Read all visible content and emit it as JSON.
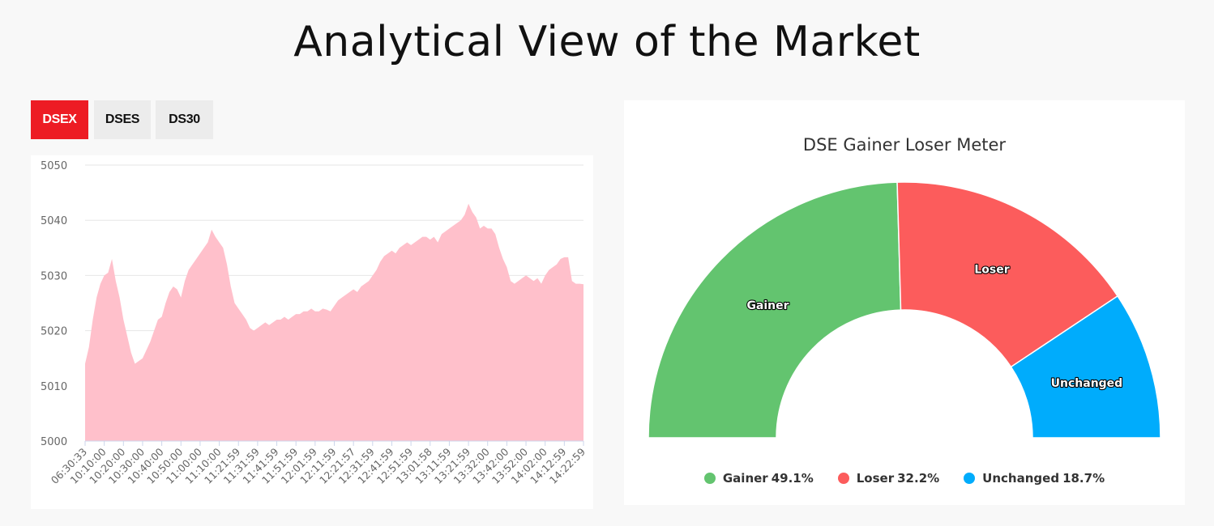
{
  "page": {
    "title": "Analytical View of the Market"
  },
  "tabs": [
    {
      "label": "DSEX",
      "active": true
    },
    {
      "label": "DSES",
      "active": false
    },
    {
      "label": "DS30",
      "active": false
    }
  ],
  "chart_data": [
    {
      "type": "area",
      "title": "",
      "xlabel": "",
      "ylabel": "",
      "ylim": [
        5000,
        5050
      ],
      "yticks": [
        5000,
        5010,
        5020,
        5030,
        5040,
        5050
      ],
      "color": "#ffc0cb",
      "x_tick_labels": [
        "06:30:33",
        "10:10:00",
        "10:20:00",
        "10:30:00",
        "10:40:00",
        "10:50:00",
        "11:00:00",
        "11:10:00",
        "11:21:59",
        "11:31:59",
        "11:41:59",
        "11:51:59",
        "12:01:59",
        "12:11:59",
        "12:21:57",
        "12:31:59",
        "12:41:59",
        "12:51:59",
        "13:01:58",
        "13:11:59",
        "13:21:59",
        "13:32:00",
        "13:42:00",
        "13:52:00",
        "14:02:00",
        "14:12:59",
        "14:22:59"
      ],
      "values": [
        5014.0,
        5017.0,
        5022.0,
        5026.0,
        5028.5,
        5030.0,
        5030.5,
        5033.0,
        5029.0,
        5026.0,
        5022.0,
        5019.0,
        5016.0,
        5014.0,
        5014.5,
        5015.0,
        5016.5,
        5018.0,
        5020.0,
        5022.0,
        5022.5,
        5025.0,
        5027.0,
        5028.0,
        5027.5,
        5026.0,
        5029.0,
        5031.0,
        5032.0,
        5033.0,
        5034.0,
        5035.0,
        5036.0,
        5038.3,
        5037.0,
        5036.0,
        5035.0,
        5032.0,
        5028.0,
        5025.0,
        5024.0,
        5023.0,
        5022.0,
        5020.5,
        5020.0,
        5020.5,
        5021.0,
        5021.5,
        5021.0,
        5021.5,
        5022.0,
        5022.0,
        5022.5,
        5022.0,
        5022.5,
        5023.0,
        5023.0,
        5023.5,
        5023.5,
        5024.0,
        5023.5,
        5023.5,
        5024.0,
        5023.8,
        5023.5,
        5024.5,
        5025.5,
        5026.0,
        5026.5,
        5027.0,
        5027.5,
        5027.0,
        5028.0,
        5028.5,
        5029.0,
        5030.0,
        5031.0,
        5032.5,
        5033.5,
        5034.0,
        5034.5,
        5034.0,
        5035.0,
        5035.5,
        5036.0,
        5035.5,
        5036.0,
        5036.5,
        5037.0,
        5037.0,
        5036.5,
        5037.0,
        5036.0,
        5037.5,
        5038.0,
        5038.5,
        5039.0,
        5039.5,
        5040.0,
        5041.0,
        5043.0,
        5041.5,
        5040.5,
        5038.5,
        5039.0,
        5038.5,
        5038.5,
        5037.5,
        5035.0,
        5033.0,
        5031.5,
        5029.0,
        5028.5,
        5029.0,
        5029.5,
        5030.0,
        5029.5,
        5029.0,
        5029.5,
        5028.5,
        5030.0,
        5031.0,
        5031.5,
        5032.0,
        5033.0,
        5033.3,
        5033.3,
        5029.0,
        5028.5,
        5028.5,
        5028.4
      ]
    },
    {
      "type": "pie",
      "subtype": "semi-donut",
      "title": "DSE Gainer Loser Meter",
      "categories": [
        "Gainer",
        "Loser",
        "Unchanged"
      ],
      "values": [
        49.1,
        32.2,
        18.7
      ],
      "colors": [
        "#63c46f",
        "#fc5c5c",
        "#00acfc"
      ],
      "legend": [
        {
          "name": "Gainer",
          "value": "49.1%"
        },
        {
          "name": "Loser",
          "value": "32.2%"
        },
        {
          "name": "Unchanged",
          "value": "18.7%"
        }
      ],
      "legend_position": "bottom"
    }
  ]
}
